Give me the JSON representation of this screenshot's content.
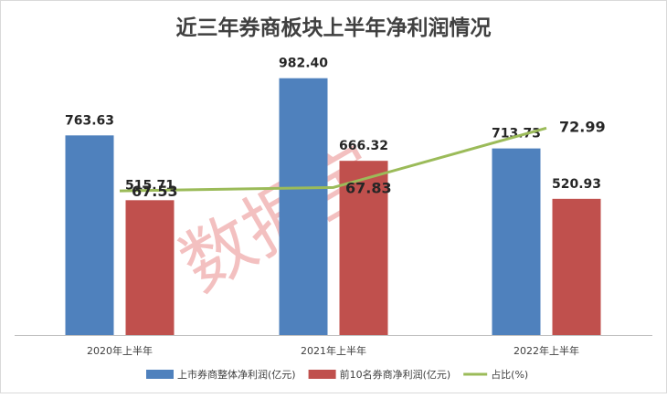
{
  "chart_data": {
    "type": "bar",
    "title": "近三年券商板块上半年净利润情况",
    "categories": [
      "2020年上半年",
      "2021年上半年",
      "2022年上半年"
    ],
    "ylim": [
      0,
      1100
    ],
    "y2lim": [
      55,
      80
    ],
    "grid": false,
    "legend_position": "bottom",
    "series": [
      {
        "name": "上市券商整体净利润(亿元)",
        "type": "bar",
        "color": "#4F81BD",
        "values": [
          763.63,
          982.4,
          713.73
        ],
        "labels": [
          "763.63",
          "982.40",
          "713.73"
        ]
      },
      {
        "name": "前10名券商净利润(亿元)",
        "type": "bar",
        "color": "#C0504D",
        "values": [
          515.71,
          666.32,
          520.93
        ],
        "labels": [
          "515.71",
          "666.32",
          "520.93"
        ]
      },
      {
        "name": "占比(%)",
        "type": "line",
        "axis": "secondary",
        "color": "#9BBB59",
        "values": [
          67.53,
          67.83,
          72.99
        ],
        "labels": [
          "67.53",
          "67.83",
          "72.99"
        ]
      }
    ],
    "watermark": "数据宝"
  }
}
